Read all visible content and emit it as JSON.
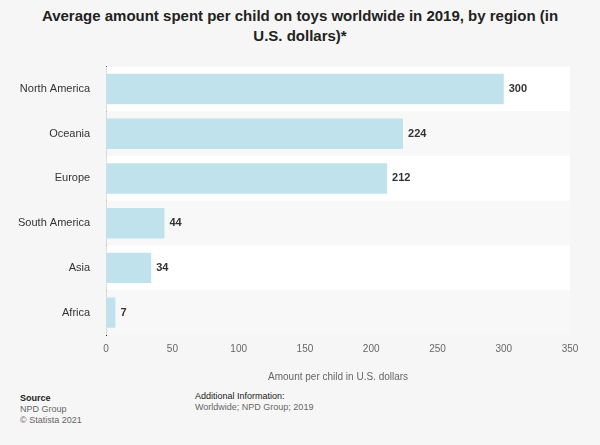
{
  "chart_data": {
    "type": "bar",
    "orientation": "horizontal",
    "title": "Average amount spent per child on toys worldwide in 2019, by region (in U.S. dollars)*",
    "x_label": "Amount per child in U.S. dollars",
    "categories": [
      "North America",
      "Oceania",
      "Europe",
      "South America",
      "Asia",
      "Africa"
    ],
    "values": [
      300,
      224,
      212,
      44,
      34,
      7
    ],
    "color": "#bfe2ec",
    "xlim": [
      0,
      350
    ],
    "xticks": [
      0,
      50,
      100,
      150,
      200,
      250,
      300,
      350
    ],
    "grid": false,
    "data_labels": true,
    "annotations": {
      "source_heading": "Source",
      "source": "NPD Group",
      "copyright": "© Statista 2021",
      "info_heading": "Additional Information:",
      "info": "Worldwide; NPD Group; 2019"
    }
  }
}
